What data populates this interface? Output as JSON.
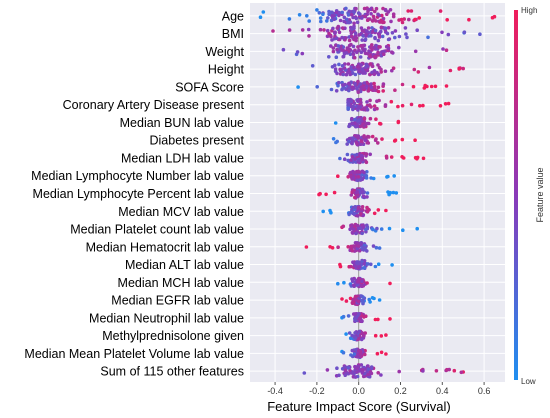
{
  "chart_data": {
    "type": "scatter",
    "subtype": "shap-beeswarm",
    "xlabel": "Feature Impact Score (Survival)",
    "xlim": [
      -0.52,
      0.7
    ],
    "xticks": [
      "-0.4",
      "-0.2",
      "0.0",
      "0.2",
      "0.4",
      "0.6"
    ],
    "xtick_values": [
      -0.4,
      -0.2,
      0.0,
      0.2,
      0.4,
      0.6
    ],
    "grid": true,
    "colorbar": {
      "title": "Feature value",
      "high_label": "High",
      "low_label": "Low",
      "low_color": "#1f8ff0",
      "mid_color": "#8a3ab9",
      "high_color": "#f01d5b"
    },
    "features": [
      {
        "name": "Age",
        "min": -0.47,
        "max": 0.65,
        "spread": 0.4,
        "n": 130,
        "width": 0.44,
        "trend": 1
      },
      {
        "name": "BMI",
        "min": -0.41,
        "max": 0.58,
        "spread": 0.32,
        "n": 120,
        "width": 0.42,
        "trend": -0.3
      },
      {
        "name": "Weight",
        "min": -0.36,
        "max": 0.42,
        "spread": 0.26,
        "n": 110,
        "width": 0.4,
        "trend": 0.2
      },
      {
        "name": "Height",
        "min": -0.22,
        "max": 0.5,
        "spread": 0.22,
        "n": 95,
        "width": 0.34,
        "trend": 0.4
      },
      {
        "name": "SOFA Score",
        "min": -0.29,
        "max": 0.42,
        "spread": 0.2,
        "n": 90,
        "width": 0.3,
        "trend": 1
      },
      {
        "name": "Coronary Artery Disease present",
        "min": -0.05,
        "max": 0.43,
        "spread": 0.15,
        "n": 75,
        "width": 0.3,
        "trend": 1
      },
      {
        "name": "Median BUN lab value",
        "min": -0.11,
        "max": 0.19,
        "spread": 0.08,
        "n": 60,
        "width": 0.28,
        "trend": 1
      },
      {
        "name": "Diabetes present",
        "min": -0.12,
        "max": 0.27,
        "spread": 0.09,
        "n": 60,
        "width": 0.26,
        "trend": 1
      },
      {
        "name": "Median LDH lab value",
        "min": -0.09,
        "max": 0.31,
        "spread": 0.09,
        "n": 60,
        "width": 0.26,
        "trend": 1
      },
      {
        "name": "Median Lymphocyte Number lab value",
        "min": -0.1,
        "max": 0.17,
        "spread": 0.07,
        "n": 55,
        "width": 0.26,
        "trend": -1
      },
      {
        "name": "Median Lymphocyte Percent lab value",
        "min": -0.19,
        "max": 0.18,
        "spread": 0.07,
        "n": 55,
        "width": 0.26,
        "trend": -1
      },
      {
        "name": "Median MCV lab value",
        "min": -0.17,
        "max": 0.13,
        "spread": 0.07,
        "n": 55,
        "width": 0.26,
        "trend": 1
      },
      {
        "name": "Median Platelet count lab value",
        "min": -0.08,
        "max": 0.28,
        "spread": 0.08,
        "n": 55,
        "width": 0.26,
        "trend": -1
      },
      {
        "name": "Median Hematocrit lab value",
        "min": -0.25,
        "max": 0.1,
        "spread": 0.08,
        "n": 55,
        "width": 0.26,
        "trend": -1
      },
      {
        "name": "Median ALT lab value",
        "min": -0.09,
        "max": 0.16,
        "spread": 0.06,
        "n": 50,
        "width": 0.24,
        "trend": -1
      },
      {
        "name": "Median MCH lab value",
        "min": -0.1,
        "max": 0.15,
        "spread": 0.06,
        "n": 50,
        "width": 0.24,
        "trend": 1
      },
      {
        "name": "Median EGFR lab value",
        "min": -0.08,
        "max": 0.1,
        "spread": 0.05,
        "n": 45,
        "width": 0.24,
        "trend": -1
      },
      {
        "name": "Median Neutrophil lab value",
        "min": -0.08,
        "max": 0.15,
        "spread": 0.05,
        "n": 45,
        "width": 0.24,
        "trend": 1
      },
      {
        "name": "Methylprednisolone given",
        "min": -0.06,
        "max": 0.13,
        "spread": 0.05,
        "n": 45,
        "width": 0.24,
        "trend": 1
      },
      {
        "name": "Median Mean Platelet Volume lab value",
        "min": -0.08,
        "max": 0.13,
        "spread": 0.05,
        "n": 45,
        "width": 0.24,
        "trend": 1
      },
      {
        "name": "Sum of 115 other features",
        "min": -0.26,
        "max": 0.5,
        "spread": 0.16,
        "n": 100,
        "width": 0.36,
        "trend": 0.3
      }
    ]
  }
}
